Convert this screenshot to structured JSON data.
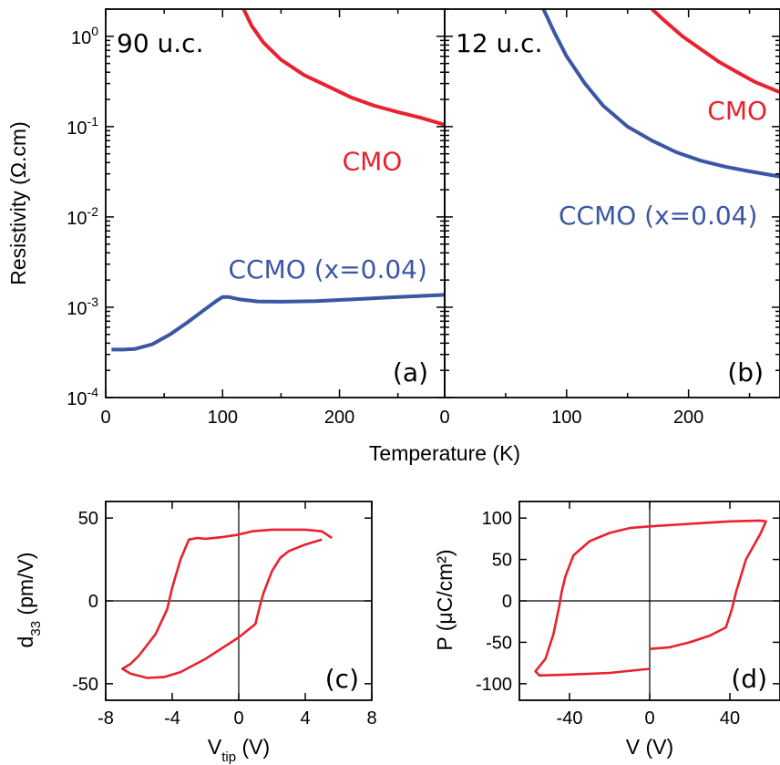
{
  "colors": {
    "cmo": "#e8222e",
    "ccmo": "#3a57a4",
    "loop": "#e8222e",
    "axis": "#000000"
  },
  "chart_data": [
    {
      "panel": "(a)",
      "type": "line",
      "thickness_label": "90 u.c.",
      "xlabel": "Temperature (K)",
      "ylabel": "Resistivity (Ω.cm)",
      "yscale": "log",
      "xlim": [
        0,
        290
      ],
      "ylim": [
        0.0001,
        2
      ],
      "xticks": [
        "0",
        "100",
        "200"
      ],
      "yticks": [
        {
          "base": "10",
          "exp": "0",
          "value": 1
        },
        {
          "base": "10",
          "exp": "-1",
          "value": 0.1
        },
        {
          "base": "10",
          "exp": "-2",
          "value": 0.01
        },
        {
          "base": "10",
          "exp": "-3",
          "value": 0.001
        },
        {
          "base": "10",
          "exp": "-4",
          "value": 0.0001
        }
      ],
      "series": [
        {
          "name": "CMO",
          "label_pos": [
            228,
            0.033
          ],
          "points": [
            [
              118,
              2.0
            ],
            [
              125,
              1.3
            ],
            [
              135,
              0.85
            ],
            [
              150,
              0.55
            ],
            [
              170,
              0.37
            ],
            [
              190,
              0.28
            ],
            [
              210,
              0.21
            ],
            [
              230,
              0.17
            ],
            [
              250,
              0.145
            ],
            [
              270,
              0.125
            ],
            [
              290,
              0.105
            ]
          ]
        },
        {
          "name": "CCMO (x=0.04)",
          "label_pos": [
            190,
            0.0021
          ],
          "points": [
            [
              5,
              0.00034
            ],
            [
              15,
              0.00034
            ],
            [
              25,
              0.000345
            ],
            [
              40,
              0.00039
            ],
            [
              55,
              0.0005
            ],
            [
              70,
              0.00068
            ],
            [
              85,
              0.00095
            ],
            [
              95,
              0.00118
            ],
            [
              100,
              0.0013
            ],
            [
              105,
              0.0013
            ],
            [
              115,
              0.00122
            ],
            [
              130,
              0.00116
            ],
            [
              150,
              0.00115
            ],
            [
              180,
              0.00117
            ],
            [
              210,
              0.00122
            ],
            [
              250,
              0.0013
            ],
            [
              290,
              0.00137
            ]
          ]
        }
      ]
    },
    {
      "panel": "(b)",
      "type": "line",
      "thickness_label": "12 u.c.",
      "yscale": "log",
      "xlim": [
        0,
        275
      ],
      "ylim": [
        0.0001,
        2
      ],
      "xticks": [
        "0",
        "100",
        "200"
      ],
      "series": [
        {
          "name": "CMO",
          "label_pos": [
            240,
            0.12
          ],
          "points": [
            [
              170,
              2.0
            ],
            [
              180,
              1.5
            ],
            [
              195,
              1.0
            ],
            [
              210,
              0.72
            ],
            [
              225,
              0.52
            ],
            [
              240,
              0.4
            ],
            [
              255,
              0.31
            ],
            [
              275,
              0.24
            ]
          ]
        },
        {
          "name": "CCMO (x=0.04)",
          "label_pos": [
            175,
            0.0083
          ],
          "points": [
            [
              81,
              2.0
            ],
            [
              90,
              1.1
            ],
            [
              100,
              0.6
            ],
            [
              115,
              0.3
            ],
            [
              130,
              0.17
            ],
            [
              150,
              0.1
            ],
            [
              170,
              0.07
            ],
            [
              190,
              0.052
            ],
            [
              210,
              0.042
            ],
            [
              230,
              0.036
            ],
            [
              250,
              0.032
            ],
            [
              275,
              0.028
            ]
          ]
        }
      ]
    },
    {
      "panel": "(c)",
      "type": "line",
      "xlabel": {
        "main": "V",
        "sub": "tip",
        "unit": " (V)"
      },
      "ylabel": {
        "main": "d",
        "sub": "33",
        "unit": " (pm/V)"
      },
      "xlim": [
        -8,
        8
      ],
      "ylim": [
        -60,
        60
      ],
      "xticks": [
        -8,
        -4,
        0,
        4,
        8
      ],
      "yticks": [
        50,
        0,
        -50
      ],
      "series": [
        {
          "name": "",
          "points": [
            [
              5.6,
              38
            ],
            [
              5,
              42
            ],
            [
              4,
              43
            ],
            [
              2,
              43
            ],
            [
              0.8,
              42
            ],
            [
              0,
              40
            ],
            [
              -1,
              38.5
            ],
            [
              -2,
              37.5
            ],
            [
              -2.5,
              38
            ],
            [
              -3,
              37
            ],
            [
              -3.5,
              25
            ],
            [
              -4,
              8
            ],
            [
              -4.3,
              -5
            ],
            [
              -5,
              -20
            ],
            [
              -6,
              -33
            ],
            [
              -6.5,
              -38
            ],
            [
              -7,
              -41
            ],
            [
              -6.5,
              -44
            ],
            [
              -5.5,
              -46.5
            ],
            [
              -4.5,
              -46
            ],
            [
              -3.5,
              -43
            ],
            [
              -2,
              -35
            ],
            [
              0,
              -22
            ],
            [
              1,
              -14
            ],
            [
              1.3,
              -2
            ],
            [
              1.5,
              5
            ],
            [
              2,
              18
            ],
            [
              2.5,
              26
            ],
            [
              3,
              30
            ],
            [
              4,
              34
            ],
            [
              5,
              37
            ]
          ]
        }
      ]
    },
    {
      "panel": "(d)",
      "type": "line",
      "xlabel": "V (V)",
      "ylabel": "P (μC/cm²)",
      "xlim": [
        -65,
        65
      ],
      "ylim": [
        -120,
        120
      ],
      "xticks": [
        -40,
        0,
        40
      ],
      "yticks": [
        100,
        50,
        0,
        -50,
        -100
      ],
      "series": [
        {
          "name": "",
          "points": [
            [
              0,
              -82
            ],
            [
              -20,
              -87
            ],
            [
              -40,
              -89
            ],
            [
              -55,
              -90
            ],
            [
              -57,
              -85
            ],
            [
              -52,
              -70
            ],
            [
              -48,
              -40
            ],
            [
              -45,
              -5
            ],
            [
              -44,
              10
            ],
            [
              -42,
              30
            ],
            [
              -38,
              55
            ],
            [
              -30,
              72
            ],
            [
              -20,
              82
            ],
            [
              -10,
              88
            ],
            [
              0,
              90
            ],
            [
              20,
              93
            ],
            [
              40,
              96
            ],
            [
              55,
              97
            ],
            [
              58,
              96
            ],
            [
              55,
              80
            ],
            [
              48,
              50
            ],
            [
              43,
              10
            ],
            [
              41,
              -10
            ],
            [
              38,
              -32
            ],
            [
              30,
              -42
            ],
            [
              20,
              -50
            ],
            [
              10,
              -56
            ],
            [
              0,
              -58
            ]
          ]
        }
      ]
    }
  ]
}
